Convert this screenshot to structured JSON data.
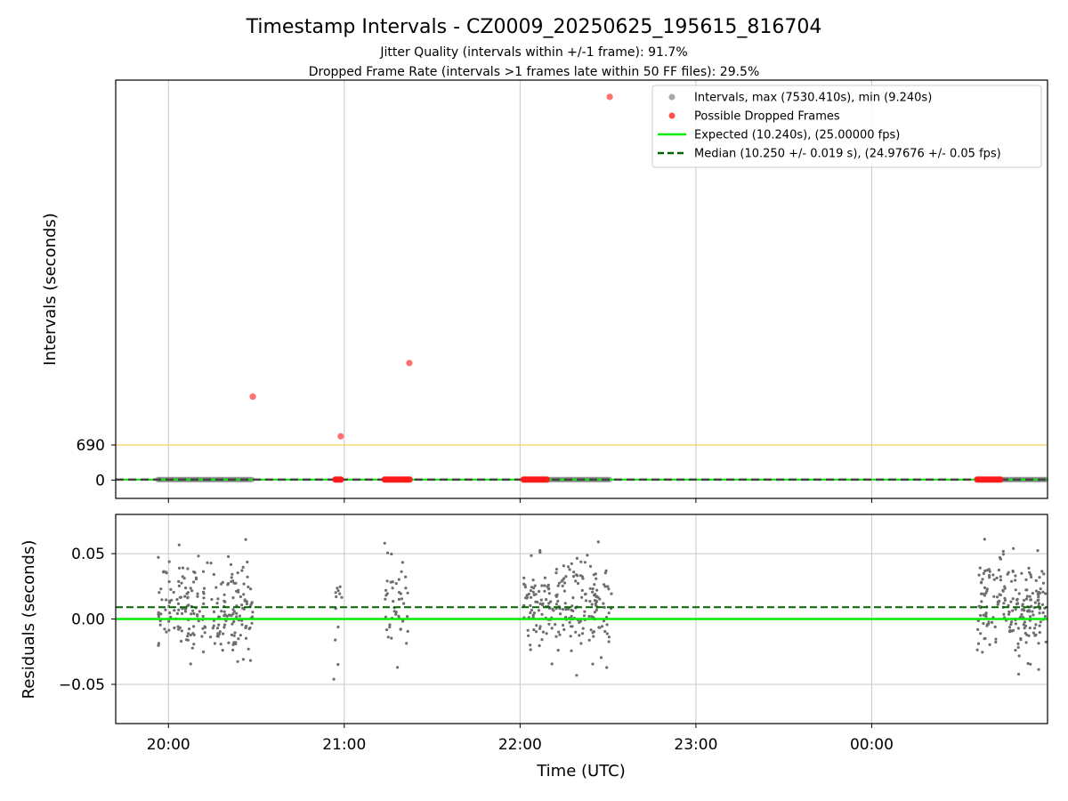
{
  "title": "Timestamp Intervals - CZ0009_20250625_195615_816704",
  "subtitle_1": "Jitter Quality (intervals within +/-1 frame): 91.7%",
  "subtitle_2": "Dropped Frame Rate (intervals >1 frames late within 50 FF files): 29.5%",
  "colors": {
    "intervals": "#808080",
    "dropped": "#ff2b2b",
    "expected": "#00ee00",
    "median": "#006400",
    "threshold": "#f5c842",
    "grid": "#c8c8c8",
    "residual_points": "#6e6e6e"
  },
  "x_axis": {
    "label": "Time (UTC)",
    "tick_labels": [
      "20:00",
      "21:00",
      "22:00",
      "23:00",
      "00:00"
    ],
    "tick_hours": [
      20,
      21,
      22,
      23,
      24
    ],
    "range_hours": [
      19.7,
      25.0
    ]
  },
  "chart_data": [
    {
      "type": "scatter",
      "name": "intervals-panel",
      "ylabel": "Intervals (seconds)",
      "y_tick_labels": [
        "0",
        "690"
      ],
      "y_ticks": [
        0,
        690
      ],
      "ylim": [
        -360,
        7860
      ],
      "grid": "x",
      "legend_position": "upper right",
      "legend": [
        {
          "label": "Intervals, max (7530.410s), min (9.240s)",
          "kind": "dot",
          "color": "#a8a8a8"
        },
        {
          "label": "Possible Dropped Frames",
          "kind": "dot",
          "color": "#ff5050"
        },
        {
          "label": "Expected (10.240s), (25.00000 fps)",
          "kind": "line",
          "color": "#00ee00"
        },
        {
          "label": "Median (10.250 +/- 0.019 s), (24.97676 +/- 0.05 fps)",
          "kind": "dash",
          "color": "#006400"
        }
      ],
      "threshold_line": 690,
      "expected": 10.24,
      "median": 10.25,
      "interval_clusters_hours": [
        [
          19.94,
          20.48
        ],
        [
          20.95,
          20.99
        ],
        [
          21.23,
          21.38
        ],
        [
          22.02,
          22.52
        ],
        [
          24.6,
          25.0
        ]
      ],
      "dropped_clusters_hours": [
        [
          20.95,
          20.99
        ],
        [
          21.23,
          21.38
        ],
        [
          22.02,
          22.16
        ],
        [
          24.6,
          24.74
        ]
      ],
      "dropped_outliers": [
        {
          "x_hour": 20.48,
          "y": 1640
        },
        {
          "x_hour": 20.98,
          "y": 860
        },
        {
          "x_hour": 21.37,
          "y": 2300
        },
        {
          "x_hour": 22.51,
          "y": 7530.41
        }
      ]
    },
    {
      "type": "scatter",
      "name": "residuals-panel",
      "ylabel": "Residuals (seconds)",
      "xlabel": "Time (UTC)",
      "y_tick_labels": [
        "−0.05",
        "0.00",
        "0.05"
      ],
      "y_ticks": [
        -0.05,
        0.0,
        0.05
      ],
      "ylim": [
        -0.08,
        0.08
      ],
      "grid": "both",
      "expected_residual": 0.0,
      "median_residual": 0.009,
      "residual_clusters_hours": [
        {
          "range": [
            19.94,
            20.48
          ],
          "n": 230
        },
        {
          "range": [
            20.94,
            20.99
          ],
          "n": 12
        },
        {
          "range": [
            21.23,
            21.37
          ],
          "n": 45
        },
        {
          "range": [
            22.02,
            22.52
          ],
          "n": 220
        },
        {
          "range": [
            24.6,
            25.0
          ],
          "n": 210
        }
      ],
      "residual_range": [
        -0.046,
        0.061
      ]
    }
  ]
}
